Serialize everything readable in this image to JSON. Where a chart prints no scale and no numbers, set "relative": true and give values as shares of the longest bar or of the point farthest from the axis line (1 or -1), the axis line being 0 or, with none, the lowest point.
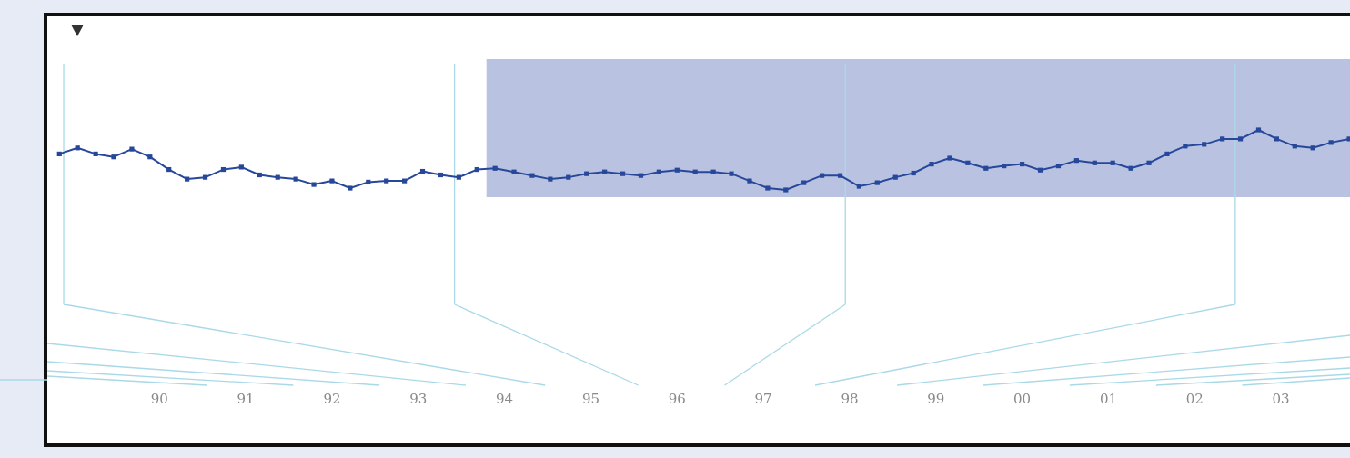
{
  "chart_data": {
    "type": "line",
    "relative": true,
    "color": "#27489a",
    "marker": "square",
    "line_style": "solid",
    "xlim": [
      1988.7,
      2003.8
    ],
    "xticks": [
      {
        "value": 1990,
        "label": "90"
      },
      {
        "value": 1991,
        "label": "91"
      },
      {
        "value": 1992,
        "label": "92"
      },
      {
        "value": 1993,
        "label": "93"
      },
      {
        "value": 1994,
        "label": "94"
      },
      {
        "value": 1995,
        "label": "95"
      },
      {
        "value": 1996,
        "label": "96"
      },
      {
        "value": 1997,
        "label": "97"
      },
      {
        "value": 1998,
        "label": "98"
      },
      {
        "value": 1999,
        "label": "99"
      },
      {
        "value": 2000,
        "label": "00"
      },
      {
        "value": 2001,
        "label": "01"
      },
      {
        "value": 2002,
        "label": "02"
      },
      {
        "value": 2003,
        "label": "03"
      }
    ],
    "x": [
      1988.84,
      1989.05,
      1989.26,
      1989.47,
      1989.68,
      1989.89,
      1990.11,
      1990.32,
      1990.53,
      1990.74,
      1990.95,
      1991.16,
      1991.37,
      1991.58,
      1991.79,
      1992.0,
      1992.21,
      1992.42,
      1992.63,
      1992.84,
      1993.05,
      1993.26,
      1993.47,
      1993.68,
      1993.89,
      1994.11,
      1994.32,
      1994.53,
      1994.74,
      1994.95,
      1995.16,
      1995.37,
      1995.58,
      1995.79,
      1996.0,
      1996.21,
      1996.42,
      1996.63,
      1996.84,
      1997.05,
      1997.26,
      1997.47,
      1997.68,
      1997.89,
      1998.11,
      1998.32,
      1998.53,
      1998.74,
      1998.95,
      1999.16,
      1999.37,
      1999.58,
      1999.79,
      2000.0,
      2000.21,
      2000.42,
      2000.63,
      2000.84,
      2001.05,
      2001.26,
      2001.47,
      2001.68,
      2001.89,
      2002.11,
      2002.32,
      2002.53,
      2002.74,
      2002.95,
      2003.16,
      2003.37,
      2003.58,
      2003.79
    ],
    "values": [
      0.6,
      0.7,
      0.6,
      0.55,
      0.68,
      0.55,
      0.34,
      0.18,
      0.21,
      0.34,
      0.38,
      0.25,
      0.21,
      0.18,
      0.09,
      0.15,
      0.03,
      0.13,
      0.15,
      0.15,
      0.31,
      0.25,
      0.21,
      0.34,
      0.36,
      0.3,
      0.24,
      0.18,
      0.21,
      0.27,
      0.3,
      0.27,
      0.24,
      0.3,
      0.33,
      0.3,
      0.3,
      0.27,
      0.15,
      0.03,
      0.0,
      0.12,
      0.24,
      0.24,
      0.06,
      0.12,
      0.21,
      0.28,
      0.43,
      0.53,
      0.45,
      0.36,
      0.4,
      0.43,
      0.33,
      0.4,
      0.49,
      0.45,
      0.45,
      0.36,
      0.45,
      0.6,
      0.73,
      0.76,
      0.85,
      0.85,
      1.0,
      0.85,
      0.73,
      0.7,
      0.79,
      0.85
    ],
    "ref_lines": [
      {
        "axis": "x",
        "value": 1988.89,
        "color": "#a9d9e8"
      },
      {
        "axis": "x",
        "value": 1993.42,
        "color": "#a9d9e8"
      },
      {
        "axis": "x",
        "value": 1997.95,
        "color": "#a9d9e8"
      },
      {
        "axis": "x",
        "value": 2002.47,
        "color": "#a9d9e8"
      }
    ],
    "bands": [
      {
        "axis": "x",
        "from": 1993.79,
        "to": 2003.8,
        "color": "#b9c3e1"
      }
    ]
  }
}
